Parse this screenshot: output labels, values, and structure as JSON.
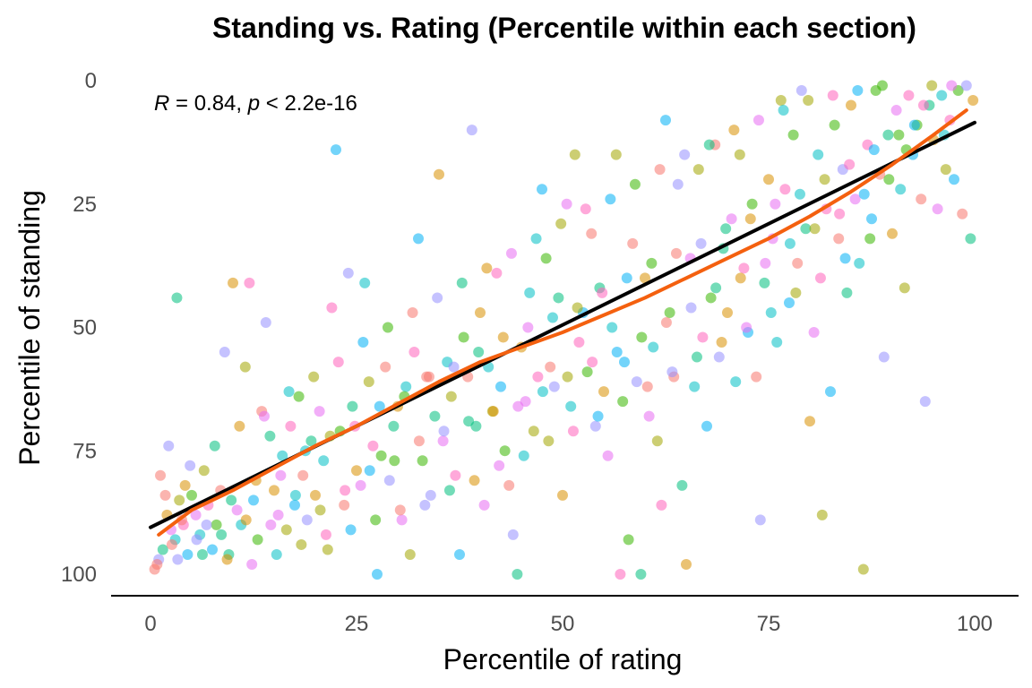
{
  "chart_data": {
    "type": "scatter",
    "title": "Standing vs. Rating (Percentile within each section)",
    "xlabel": "Percentile of rating",
    "ylabel": "Percentile of standing",
    "xlim": [
      0,
      100
    ],
    "ylim": [
      100,
      0
    ],
    "y_reversed": true,
    "x_ticks": [
      "0",
      "25",
      "50",
      "75",
      "100"
    ],
    "y_ticks": [
      "0",
      "25",
      "50",
      "75",
      "100"
    ],
    "grid": false,
    "legend": "none",
    "annotation": {
      "r_label": "R",
      "r_value": " = 0.84, ",
      "p_label": "p",
      "p_value": " < 2.2e-16"
    },
    "point_colors": [
      "#F8766D",
      "#D89000",
      "#A3A500",
      "#39B600",
      "#00BF7D",
      "#00BFC4",
      "#00B0F6",
      "#9590FF",
      "#E76BF3",
      "#FF62BC"
    ],
    "point_opacity": 0.55,
    "fit_lines": [
      {
        "name": "linear fit",
        "color": "#000000",
        "x": [
          0,
          100
        ],
        "y": [
          90.5,
          8.5
        ]
      },
      {
        "name": "loess fit",
        "color": "#F4600F",
        "x": [
          1,
          5,
          10,
          15,
          20,
          25,
          30,
          35,
          40,
          45,
          50,
          55,
          60,
          65,
          70,
          75,
          80,
          85,
          90,
          95,
          99
        ],
        "y": [
          92,
          87,
          83,
          78.5,
          74,
          70,
          65.5,
          61,
          57,
          54,
          51,
          47.5,
          44,
          40,
          36,
          32,
          27.5,
          22.5,
          17,
          11,
          6
        ]
      }
    ],
    "points": [
      [
        0.5,
        99
      ],
      [
        1,
        97
      ],
      [
        1.5,
        95
      ],
      [
        2,
        88
      ],
      [
        2.5,
        91
      ],
      [
        3,
        93
      ],
      [
        3.5,
        85
      ],
      [
        4,
        90
      ],
      [
        4.5,
        96
      ],
      [
        5,
        84
      ],
      [
        1.2,
        80
      ],
      [
        2.2,
        74
      ],
      [
        3.2,
        44
      ],
      [
        4.2,
        82
      ],
      [
        5.5,
        88
      ],
      [
        6,
        92
      ],
      [
        6.5,
        79
      ],
      [
        7,
        86
      ],
      [
        7.5,
        95
      ],
      [
        8,
        90
      ],
      [
        8.5,
        83
      ],
      [
        9,
        55
      ],
      [
        9.5,
        96
      ],
      [
        10,
        41
      ],
      [
        10.5,
        87
      ],
      [
        11,
        90
      ],
      [
        11.5,
        58
      ],
      [
        12,
        41
      ],
      [
        12.5,
        85
      ],
      [
        13,
        93
      ],
      [
        13.5,
        67
      ],
      [
        14,
        49
      ],
      [
        14.5,
        72
      ],
      [
        15,
        83
      ],
      [
        15.5,
        88
      ],
      [
        16,
        76
      ],
      [
        16.5,
        91
      ],
      [
        17,
        70
      ],
      [
        17.5,
        86
      ],
      [
        18,
        64
      ],
      [
        18.5,
        80
      ],
      [
        19,
        89
      ],
      [
        19.5,
        73
      ],
      [
        20,
        84
      ],
      [
        20.5,
        67
      ],
      [
        21,
        77
      ],
      [
        21.5,
        95
      ],
      [
        22,
        46
      ],
      [
        22.5,
        14
      ],
      [
        23,
        71
      ],
      [
        23.5,
        86
      ],
      [
        24,
        39
      ],
      [
        24.5,
        66
      ],
      [
        25,
        79
      ],
      [
        25.5,
        82
      ],
      [
        26,
        41
      ],
      [
        26.5,
        61
      ],
      [
        27,
        74
      ],
      [
        27.5,
        100
      ],
      [
        28,
        76
      ],
      [
        28.5,
        58
      ],
      [
        29,
        81
      ],
      [
        29.5,
        70
      ],
      [
        30,
        66
      ],
      [
        30.5,
        89
      ],
      [
        31,
        62
      ],
      [
        31.5,
        96
      ],
      [
        32,
        55
      ],
      [
        32.5,
        32
      ],
      [
        33,
        77
      ],
      [
        33.5,
        60
      ],
      [
        34,
        84
      ],
      [
        34.5,
        68
      ],
      [
        35,
        19
      ],
      [
        35.5,
        73
      ],
      [
        36,
        57
      ],
      [
        36.5,
        64
      ],
      [
        37,
        80
      ],
      [
        37.5,
        96
      ],
      [
        38,
        52
      ],
      [
        38.5,
        60
      ],
      [
        39,
        10
      ],
      [
        39.5,
        70
      ],
      [
        40,
        47
      ],
      [
        40.5,
        86
      ],
      [
        41,
        58
      ],
      [
        41.5,
        67
      ],
      [
        42,
        39
      ],
      [
        42.5,
        62
      ],
      [
        43,
        75
      ],
      [
        43.5,
        82
      ],
      [
        44,
        92
      ],
      [
        44.5,
        100
      ],
      [
        45,
        54
      ],
      [
        45.5,
        65
      ],
      [
        46,
        43
      ],
      [
        46.5,
        71
      ],
      [
        47,
        60
      ],
      [
        47.5,
        22
      ],
      [
        48,
        36
      ],
      [
        48.5,
        58
      ],
      [
        49,
        62
      ],
      [
        49.5,
        44
      ],
      [
        50,
        84
      ],
      [
        50.5,
        25
      ],
      [
        51,
        66
      ],
      [
        51.5,
        15
      ],
      [
        52,
        53
      ],
      [
        52.5,
        47
      ],
      [
        53,
        59
      ],
      [
        53.5,
        31
      ],
      [
        54,
        70
      ],
      [
        54.5,
        42
      ],
      [
        55,
        63
      ],
      [
        55.5,
        76
      ],
      [
        56,
        50
      ],
      [
        56.5,
        15
      ],
      [
        57,
        100
      ],
      [
        57.5,
        57
      ],
      [
        58,
        93
      ],
      [
        58.5,
        33
      ],
      [
        59,
        61
      ],
      [
        59.5,
        100
      ],
      [
        60,
        40
      ],
      [
        60.5,
        68
      ],
      [
        61,
        54
      ],
      [
        61.5,
        73
      ],
      [
        62,
        86
      ],
      [
        62.5,
        8
      ],
      [
        63,
        47
      ],
      [
        63.5,
        60
      ],
      [
        64,
        21
      ],
      [
        64.5,
        82
      ],
      [
        65,
        98
      ],
      [
        65.5,
        36
      ],
      [
        66,
        62
      ],
      [
        66.5,
        18
      ],
      [
        67,
        52
      ],
      [
        67.5,
        70
      ],
      [
        68,
        44
      ],
      [
        68.5,
        13
      ],
      [
        69,
        56
      ],
      [
        69.5,
        34
      ],
      [
        70,
        47
      ],
      [
        70.5,
        28
      ],
      [
        71,
        61
      ],
      [
        71.5,
        15
      ],
      [
        72,
        38
      ],
      [
        72.5,
        51
      ],
      [
        73,
        25
      ],
      [
        73.5,
        60
      ],
      [
        74,
        89
      ],
      [
        74.5,
        41
      ],
      [
        75,
        20
      ],
      [
        75.5,
        32
      ],
      [
        76,
        53
      ],
      [
        76.5,
        4
      ],
      [
        77,
        22
      ],
      [
        77.5,
        45
      ],
      [
        78,
        11
      ],
      [
        78.5,
        37
      ],
      [
        79,
        2
      ],
      [
        79.5,
        30
      ],
      [
        80,
        69
      ],
      [
        80.5,
        51
      ],
      [
        81,
        15
      ],
      [
        81.5,
        88
      ],
      [
        82,
        26
      ],
      [
        82.5,
        63
      ],
      [
        83,
        9
      ],
      [
        83.5,
        32
      ],
      [
        84,
        18
      ],
      [
        84.5,
        43
      ],
      [
        85,
        5
      ],
      [
        85.5,
        24
      ],
      [
        86,
        37
      ],
      [
        86.5,
        99
      ],
      [
        87,
        13
      ],
      [
        87.5,
        28
      ],
      [
        88,
        2
      ],
      [
        88.5,
        19
      ],
      [
        89,
        56
      ],
      [
        89.5,
        11
      ],
      [
        90,
        31
      ],
      [
        90.5,
        6
      ],
      [
        91,
        22
      ],
      [
        91.5,
        42
      ],
      [
        92,
        3
      ],
      [
        92.5,
        15
      ],
      [
        93,
        9
      ],
      [
        93.5,
        24
      ],
      [
        94,
        65
      ],
      [
        94.5,
        5
      ],
      [
        95,
        12
      ],
      [
        95.5,
        26
      ],
      [
        96,
        3
      ],
      [
        96.5,
        18
      ],
      [
        97,
        8
      ],
      [
        97.5,
        20
      ],
      [
        98,
        2
      ],
      [
        98.5,
        27
      ],
      [
        99,
        1
      ],
      [
        99.5,
        32
      ],
      [
        99.8,
        4
      ],
      [
        97.2,
        1
      ],
      [
        96.3,
        11
      ],
      [
        94.8,
        1
      ],
      [
        93.8,
        5
      ],
      [
        92.7,
        9
      ],
      [
        91.7,
        14
      ],
      [
        3.8,
        89
      ],
      [
        6.8,
        90
      ],
      [
        9.8,
        85
      ],
      [
        12.8,
        81
      ],
      [
        15.8,
        80
      ],
      [
        18.8,
        75
      ],
      [
        21.8,
        72
      ],
      [
        24.8,
        70
      ],
      [
        27.8,
        66
      ],
      [
        30.8,
        64
      ],
      [
        33.8,
        60
      ],
      [
        36.8,
        58
      ],
      [
        39.8,
        55
      ],
      [
        42.8,
        52
      ],
      [
        45.8,
        50
      ],
      [
        48.8,
        48
      ],
      [
        51.8,
        46
      ],
      [
        54.8,
        43
      ],
      [
        57.8,
        40
      ],
      [
        60.8,
        37
      ],
      [
        63.8,
        35
      ],
      [
        66.8,
        33
      ],
      [
        69.8,
        30
      ],
      [
        72.8,
        28
      ],
      [
        75.8,
        25
      ],
      [
        78.8,
        23
      ],
      [
        81.8,
        20
      ],
      [
        84.8,
        17
      ],
      [
        87.8,
        14
      ],
      [
        90.8,
        11
      ],
      [
        2.6,
        94
      ],
      [
        5.6,
        93
      ],
      [
        8.6,
        92
      ],
      [
        11.6,
        89
      ],
      [
        14.6,
        90
      ],
      [
        17.6,
        84
      ],
      [
        20.6,
        87
      ],
      [
        23.6,
        83
      ],
      [
        26.6,
        79
      ],
      [
        29.6,
        77
      ],
      [
        32.6,
        73
      ],
      [
        35.6,
        71
      ],
      [
        38.6,
        69
      ],
      [
        41.6,
        67
      ],
      [
        44.6,
        66
      ],
      [
        47.6,
        63
      ],
      [
        50.6,
        60
      ],
      [
        53.6,
        57
      ],
      [
        56.6,
        55
      ],
      [
        59.6,
        52
      ],
      [
        62.6,
        49
      ],
      [
        65.6,
        46
      ],
      [
        68.6,
        42
      ],
      [
        71.6,
        40
      ],
      [
        74.6,
        37
      ],
      [
        77.6,
        33
      ],
      [
        80.6,
        30
      ],
      [
        83.6,
        27
      ],
      [
        86.6,
        23
      ],
      [
        89.6,
        20
      ],
      [
        1.8,
        84
      ],
      [
        4.8,
        78
      ],
      [
        7.8,
        74
      ],
      [
        10.8,
        70
      ],
      [
        13.8,
        68
      ],
      [
        16.8,
        63
      ],
      [
        19.8,
        60
      ],
      [
        22.8,
        57
      ],
      [
        25.8,
        53
      ],
      [
        28.8,
        50
      ],
      [
        31.8,
        47
      ],
      [
        34.8,
        44
      ],
      [
        37.8,
        41
      ],
      [
        40.8,
        38
      ],
      [
        43.8,
        35
      ],
      [
        46.8,
        32
      ],
      [
        49.8,
        29
      ],
      [
        52.8,
        26
      ],
      [
        55.8,
        24
      ],
      [
        58.8,
        21
      ],
      [
        61.8,
        18
      ],
      [
        64.8,
        15
      ],
      [
        67.8,
        13
      ],
      [
        70.8,
        10
      ],
      [
        73.8,
        8
      ],
      [
        76.8,
        6
      ],
      [
        79.8,
        4
      ],
      [
        82.8,
        3
      ],
      [
        85.8,
        2
      ],
      [
        88.8,
        1
      ],
      [
        0.8,
        98
      ],
      [
        3.3,
        97
      ],
      [
        6.3,
        96
      ],
      [
        9.3,
        97
      ],
      [
        12.3,
        98
      ],
      [
        15.3,
        96
      ],
      [
        18.3,
        94
      ],
      [
        21.3,
        92
      ],
      [
        24.3,
        91
      ],
      [
        27.3,
        89
      ],
      [
        30.3,
        87
      ],
      [
        33.3,
        86
      ],
      [
        36.3,
        83
      ],
      [
        39.3,
        81
      ],
      [
        42.3,
        78
      ],
      [
        45.3,
        76
      ],
      [
        48.3,
        73
      ],
      [
        51.3,
        71
      ],
      [
        54.3,
        68
      ],
      [
        57.3,
        65
      ],
      [
        60.3,
        62
      ],
      [
        63.3,
        59
      ],
      [
        66.3,
        56
      ],
      [
        69.3,
        53
      ],
      [
        72.3,
        50
      ],
      [
        75.3,
        47
      ],
      [
        78.3,
        43
      ],
      [
        81.3,
        40
      ],
      [
        84.3,
        36
      ],
      [
        87.3,
        32
      ]
    ]
  }
}
